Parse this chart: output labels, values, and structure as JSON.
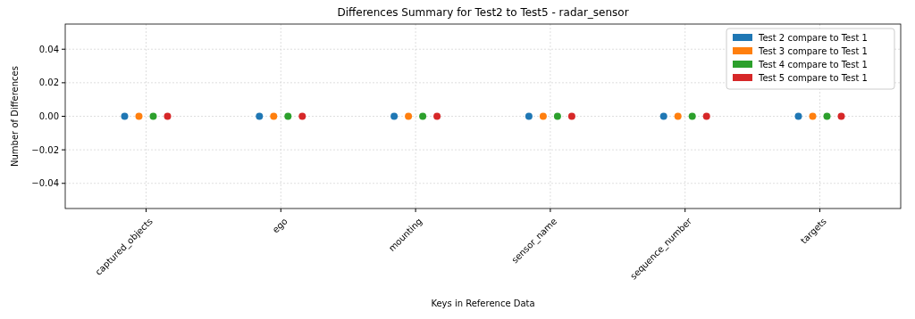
{
  "chart_data": {
    "type": "scatter",
    "title": "Differences Summary for Test2 to Test5 - radar_sensor",
    "xlabel": "Keys in Reference Data",
    "ylabel": "Number of Differences",
    "categories": [
      "captured_objects",
      "ego",
      "mounting",
      "sensor_name",
      "sequence_number",
      "targets"
    ],
    "series": [
      {
        "name": "Test 2 compare to Test 1",
        "color": "#1f77b4",
        "values": [
          0,
          0,
          0,
          0,
          0,
          0
        ]
      },
      {
        "name": "Test 3 compare to Test 1",
        "color": "#ff7f0e",
        "values": [
          0,
          0,
          0,
          0,
          0,
          0
        ]
      },
      {
        "name": "Test 4 compare to Test 1",
        "color": "#2ca02c",
        "values": [
          0,
          0,
          0,
          0,
          0,
          0
        ]
      },
      {
        "name": "Test 5 compare to Test 1",
        "color": "#d62728",
        "values": [
          0,
          0,
          0,
          0,
          0,
          0
        ]
      }
    ],
    "ylim": [
      -0.055,
      0.055
    ],
    "yticks": [
      {
        "value": -0.04,
        "label": "−0.04"
      },
      {
        "value": -0.02,
        "label": "−0.02"
      },
      {
        "value": 0,
        "label": "0.00"
      },
      {
        "value": 0.02,
        "label": "0.02"
      },
      {
        "value": 0.04,
        "label": "0.04"
      }
    ],
    "grid": true,
    "legend": "top right",
    "marker": "circle"
  }
}
